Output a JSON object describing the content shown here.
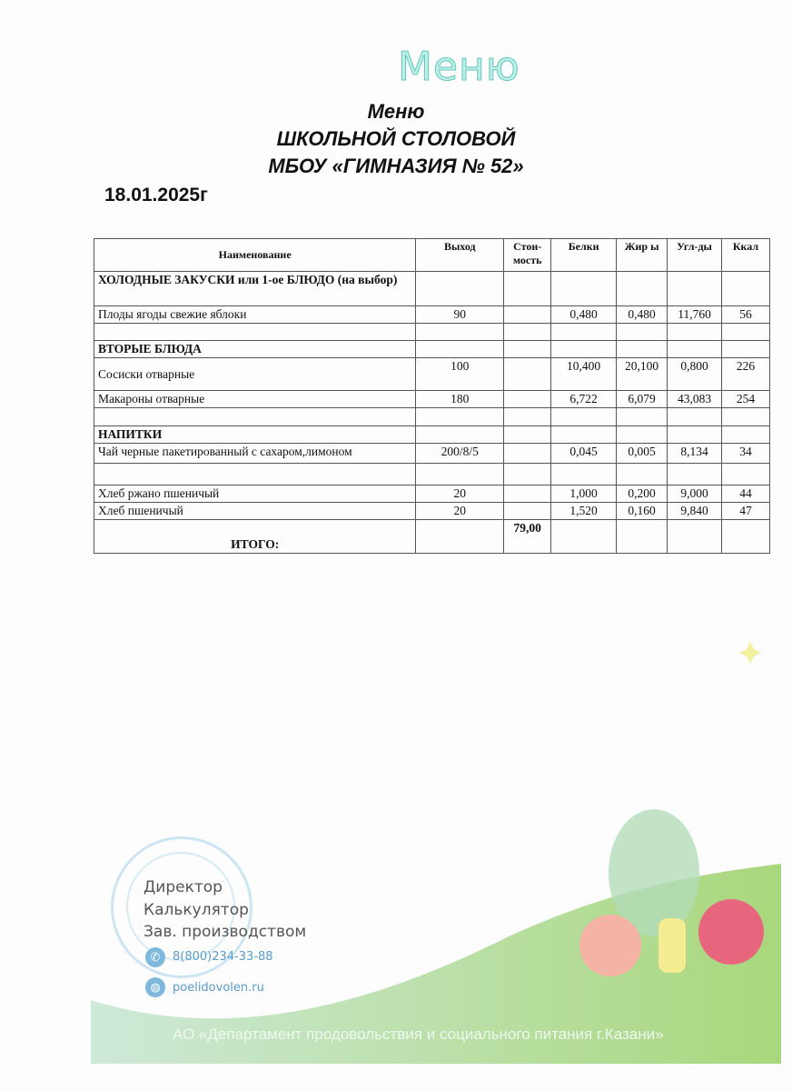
{
  "header": {
    "handwritten": "Меню",
    "title_line1": "Меню",
    "title_line2": "ШКОЛЬНОЙ СТОЛОВОЙ",
    "title_line3": "МБОУ «ГИМНАЗИЯ № 52»",
    "date": "18.01.2025г"
  },
  "table": {
    "columns": [
      "Наименование",
      "Выход",
      "Стои-мость",
      "Белки",
      "Жир ы",
      "Угл-ды",
      "Ккал"
    ],
    "rows": [
      {
        "type": "category",
        "name": "ХОЛОДНЫЕ ЗАКУСКИ или 1-ое БЛЮДО (на выбор)"
      },
      {
        "type": "item",
        "name": "Плоды ягоды свежие яблоки",
        "output": "90",
        "cost": "",
        "protein": "0,480",
        "fat": "0,480",
        "carbs": "11,760",
        "kcal": "56"
      },
      {
        "type": "empty"
      },
      {
        "type": "category",
        "name": "ВТОРЫЕ БЛЮДА"
      },
      {
        "type": "item",
        "name": "Сосиски отварные",
        "output": "100",
        "cost": "",
        "protein": "10,400",
        "fat": "20,100",
        "carbs": "0,800",
        "kcal": "226"
      },
      {
        "type": "item",
        "name": "Макароны отварные",
        "output": "180",
        "cost": "",
        "protein": "6,722",
        "fat": "6,079",
        "carbs": "43,083",
        "kcal": "254"
      },
      {
        "type": "empty"
      },
      {
        "type": "category",
        "name": "НАПИТКИ"
      },
      {
        "type": "item",
        "name": "Чай черные пакетированный с сахаром,лимоном",
        "output": "200/8/5",
        "cost": "",
        "protein": "0,045",
        "fat": "0,005",
        "carbs": "8,134",
        "kcal": "34"
      },
      {
        "type": "empty"
      },
      {
        "type": "item",
        "name": "Хлеб ржано пшеничый",
        "output": "20",
        "cost": "",
        "protein": "1,000",
        "fat": "0,200",
        "carbs": "9,000",
        "kcal": "44"
      },
      {
        "type": "item",
        "name": "Хлеб пшеничый",
        "output": "20",
        "cost": "",
        "protein": "1,520",
        "fat": "0,160",
        "carbs": "9,840",
        "kcal": "47"
      }
    ],
    "total_label": "ИТОГО:",
    "total_cost": "79,00"
  },
  "footer": {
    "roles": [
      "Директор",
      "Калькулятор",
      "Зав. производством"
    ],
    "phone": "8(800)234-33-88",
    "website": "poelidovolen.ru",
    "organization": "АО «Департамент продовольствия и социального питания г.Казани»",
    "phone_icon": "phone-icon",
    "web_icon": "globe-icon"
  },
  "colors": {
    "accent_green": "#9fd27a",
    "handwritten": "#6fd0c4",
    "stamp": "#bfe0f0"
  }
}
